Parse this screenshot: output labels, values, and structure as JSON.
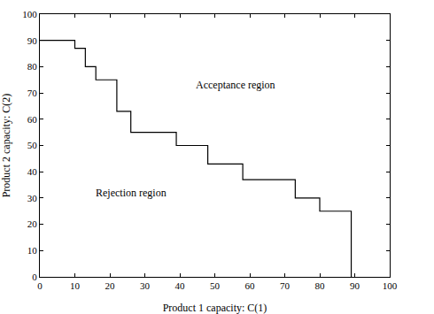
{
  "chart_data": {
    "type": "step",
    "x": [
      0,
      10,
      13,
      16,
      22,
      26,
      39,
      48,
      58,
      73,
      80,
      89
    ],
    "values": [
      90,
      87,
      80,
      75,
      63,
      55,
      50,
      43,
      37,
      30,
      25,
      0
    ],
    "color": "#000000",
    "line_style": "solid",
    "xlabel": "Product 1 capacity: C(1)",
    "ylabel": "Product 2 capacity: C(2)",
    "xlim": [
      0,
      100
    ],
    "ylim": [
      0,
      100
    ],
    "xticks": [
      0,
      10,
      20,
      30,
      40,
      50,
      60,
      70,
      80,
      90,
      100
    ],
    "yticks": [
      0,
      10,
      20,
      30,
      40,
      50,
      60,
      70,
      80,
      90,
      100
    ],
    "grid": false,
    "annotations": [
      {
        "text": "Acceptance region",
        "x": 56,
        "y": 73
      },
      {
        "text": "Rejection region",
        "x": 26,
        "y": 32
      }
    ]
  }
}
